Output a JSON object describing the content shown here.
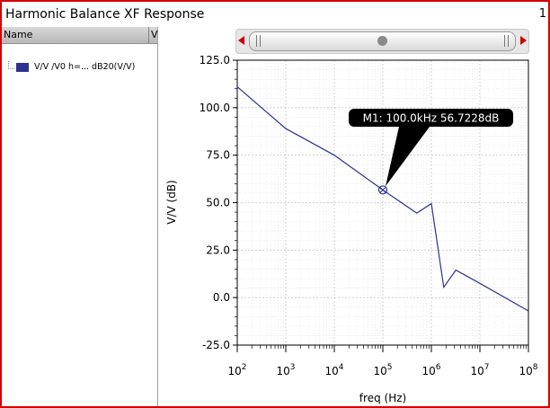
{
  "window": {
    "title": "Harmonic Balance XF Response",
    "page_number": "1"
  },
  "tree": {
    "column_name": "Name",
    "column_v": "V",
    "trace_label": "V/V /V0 h=... dB20(V/V)"
  },
  "colors": {
    "trace": "#2e3192",
    "frame": "#d40000",
    "grid": "#c8c8c8",
    "scroll_arrow": "#cc0000"
  },
  "marker": {
    "label": "M1: 100.0kHz 56.7228dB",
    "x": 100000,
    "y": 56.7228
  },
  "chart_data": {
    "type": "line",
    "xlabel": "freq (Hz)",
    "ylabel": "V/V (dB)",
    "x_scale": "log",
    "xlim": [
      100,
      100000000
    ],
    "ylim": [
      -25,
      125
    ],
    "y_ticks": [
      "125.0",
      "100.0",
      "75.0",
      "50.0",
      "25.0",
      "0.0",
      "-25.0"
    ],
    "x_ticks": [
      {
        "base": "10",
        "exp": "2"
      },
      {
        "base": "10",
        "exp": "3"
      },
      {
        "base": "10",
        "exp": "4"
      },
      {
        "base": "10",
        "exp": "5"
      },
      {
        "base": "10",
        "exp": "6"
      },
      {
        "base": "10",
        "exp": "7"
      },
      {
        "base": "10",
        "exp": "8"
      }
    ],
    "grid": true,
    "series": [
      {
        "x": [
          100,
          1000,
          10000,
          100000,
          500000,
          1000000,
          1800000,
          3200000,
          10000000,
          100000000
        ],
        "y": [
          111,
          89,
          75,
          56.7,
          44.5,
          49.5,
          5.5,
          14.5,
          7.5,
          -7
        ]
      }
    ]
  }
}
